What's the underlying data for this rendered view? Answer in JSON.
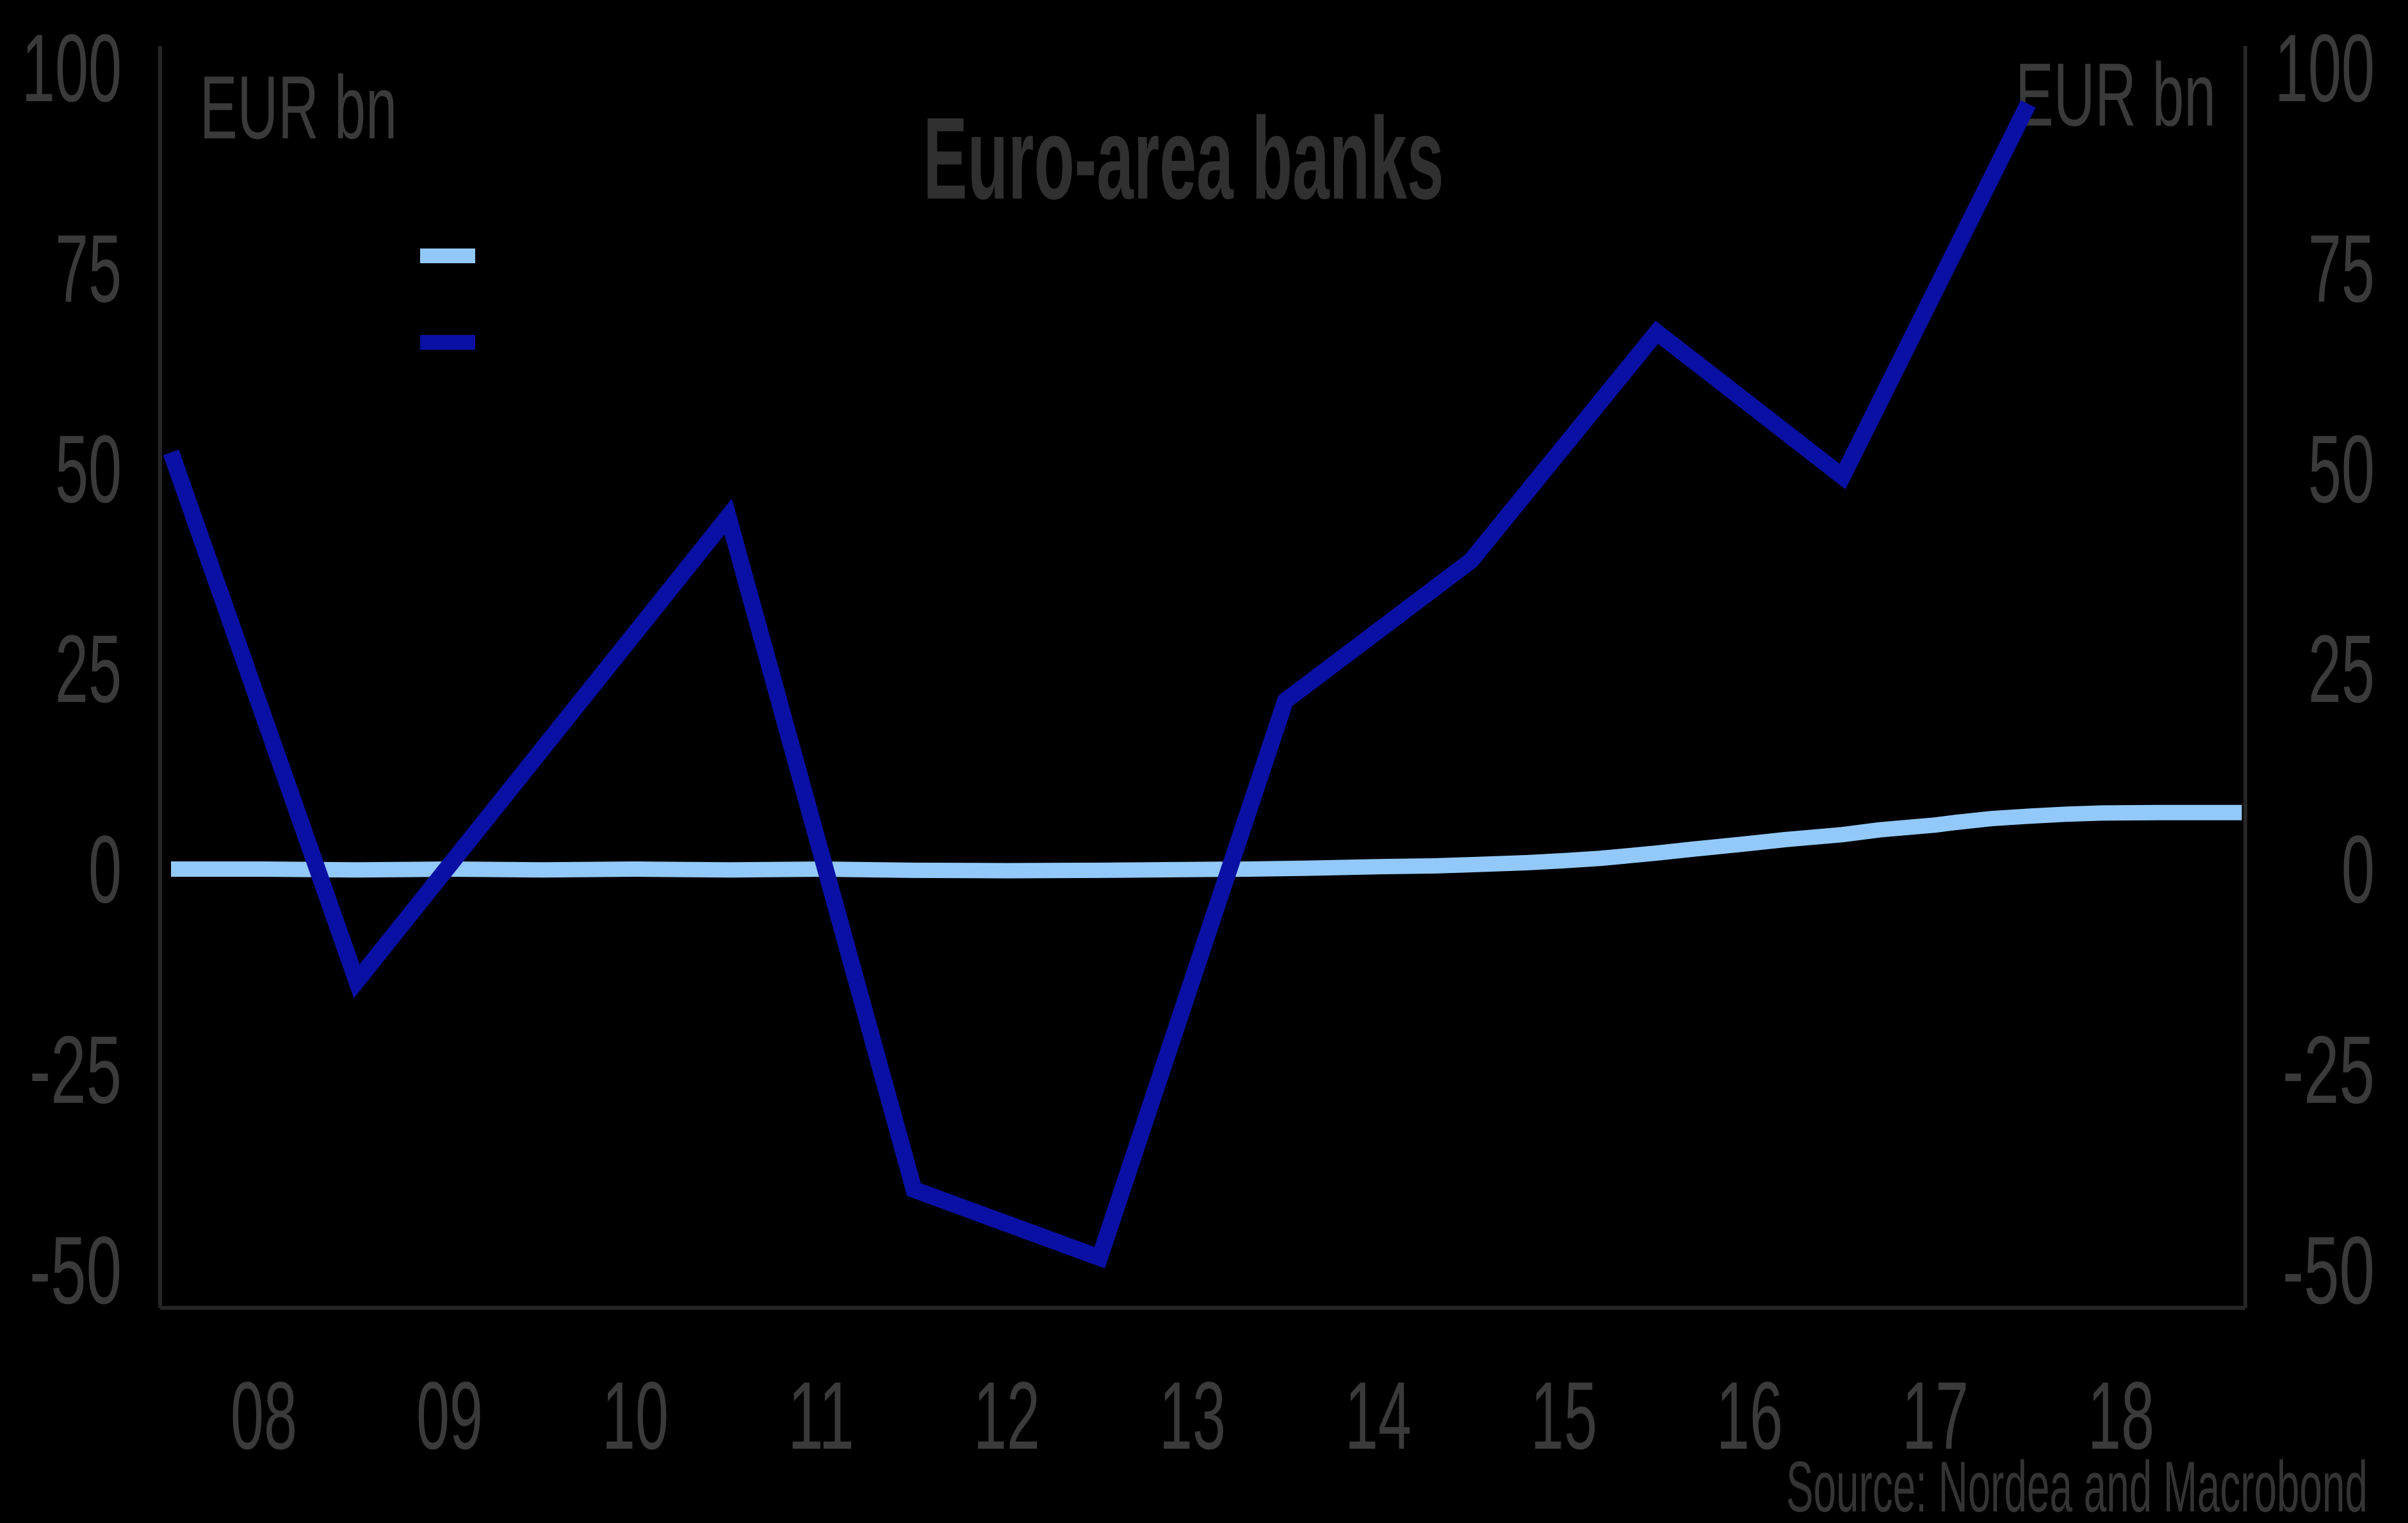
{
  "title": "Euro-area banks",
  "left_axis_unit": "EUR bn",
  "right_axis_unit": "EUR bn",
  "source": "Source: Nordea and Macrobond",
  "colors": {
    "background": "#000000",
    "light_blue": "#92C9FA",
    "dark_blue": "#0A10A3",
    "text": "#3a3a3a",
    "axis": "#262626"
  },
  "legend": [
    {
      "name": "light-blue-series",
      "color": "#92C9FA",
      "label": ""
    },
    {
      "name": "dark-blue-series",
      "color": "#0A10A3",
      "label": ""
    }
  ],
  "chart_data": {
    "type": "line",
    "title": "Euro-area banks",
    "unit": "EUR bn",
    "grid": false,
    "legend_position": "top-left",
    "ylim": [
      -55,
      103
    ],
    "xlim": [
      2007.44,
      2018.68
    ],
    "y_ticks": [
      100,
      75,
      50,
      25,
      0,
      -25,
      -50
    ],
    "x_ticks": [
      {
        "year": 2008,
        "label": "08"
      },
      {
        "year": 2009,
        "label": "09"
      },
      {
        "year": 2010,
        "label": "10"
      },
      {
        "year": 2011,
        "label": "11"
      },
      {
        "year": 2012,
        "label": "12"
      },
      {
        "year": 2013,
        "label": "13"
      },
      {
        "year": 2014,
        "label": "14"
      },
      {
        "year": 2015,
        "label": "15"
      },
      {
        "year": 2016,
        "label": "16"
      },
      {
        "year": 2017,
        "label": "17"
      },
      {
        "year": 2018,
        "label": "18"
      }
    ],
    "series": [
      {
        "name": "light-blue-series",
        "color": "#92C9FA",
        "stroke_width": 24,
        "x": [
          2007.5,
          2008.0,
          2008.5,
          2009.0,
          2009.5,
          2010.0,
          2010.5,
          2011.0,
          2011.5,
          2012.0,
          2012.5,
          2013.0,
          2013.3,
          2013.6,
          2014.0,
          2014.3,
          2014.5,
          2014.8,
          2015.0,
          2015.2,
          2015.5,
          2015.7,
          2016.0,
          2016.2,
          2016.5,
          2016.7,
          2017.0,
          2017.1,
          2017.3,
          2017.5,
          2017.7,
          2017.9,
          2018.2,
          2018.65
        ],
        "values": [
          0,
          0,
          -0.1,
          0,
          -0.1,
          0,
          -0.1,
          0,
          -0.15,
          -0.2,
          -0.15,
          -0.05,
          0,
          0.1,
          0.3,
          0.4,
          0.55,
          0.8,
          1.05,
          1.35,
          2.0,
          2.5,
          3.2,
          3.7,
          4.3,
          4.9,
          5.5,
          5.8,
          6.3,
          6.6,
          6.85,
          7.0,
          7.05,
          7.05
        ]
      },
      {
        "name": "dark-blue-series",
        "color": "#0A10A3",
        "stroke_width": 26,
        "x": [
          2007.5,
          2008.5,
          2009.5,
          2010.5,
          2011.5,
          2012.5,
          2013.5,
          2014.5,
          2015.5,
          2016.5,
          2017.5
        ],
        "values": [
          52,
          -14,
          15,
          44,
          -40,
          -48.5,
          21,
          38.5,
          67,
          49,
          95.5
        ]
      }
    ]
  }
}
